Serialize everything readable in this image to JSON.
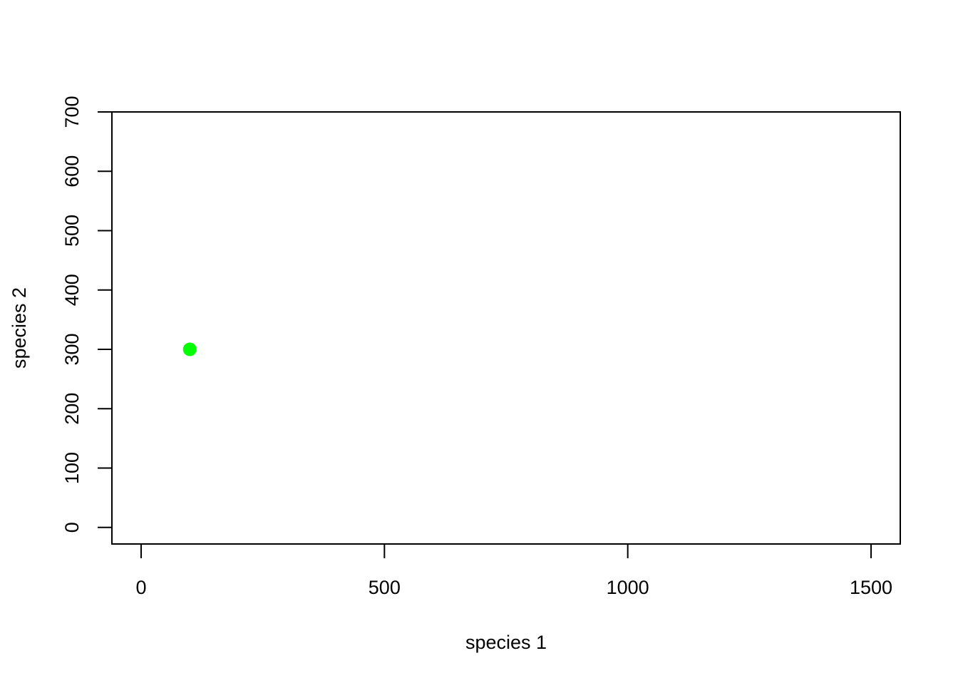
{
  "chart_data": {
    "type": "scatter",
    "title": "",
    "xlabel": "species 1",
    "ylabel": "species 2",
    "xlim": [
      -60,
      1560
    ],
    "ylim": [
      -28,
      700
    ],
    "x_ticks": [
      0,
      500,
      1000,
      1500
    ],
    "y_ticks": [
      0,
      100,
      200,
      300,
      400,
      500,
      600,
      700
    ],
    "grid": false,
    "legend": "none",
    "series": [
      {
        "color": "#00ff00",
        "marker": "filled-circle",
        "points": [
          {
            "x": 100,
            "y": 300
          }
        ]
      }
    ]
  }
}
